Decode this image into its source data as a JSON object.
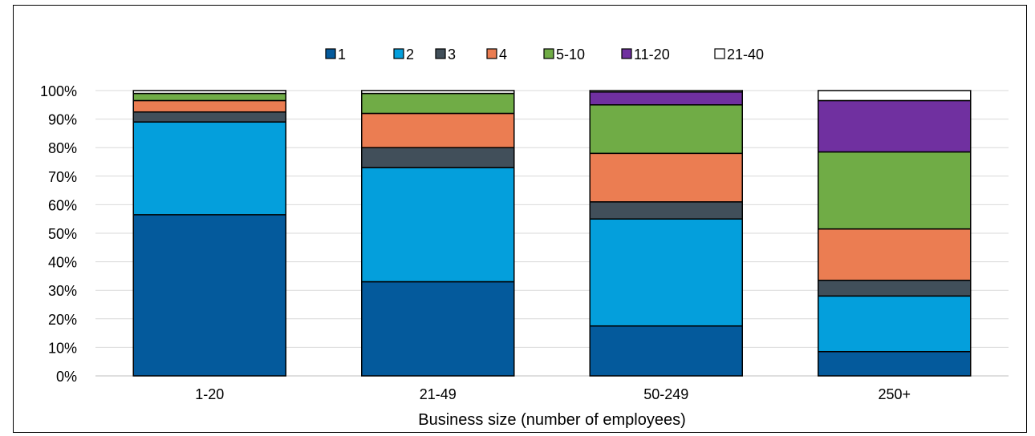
{
  "chart_data": {
    "type": "bar",
    "stacked": true,
    "categories": [
      "1-20",
      "21-49",
      "50-249",
      "250+"
    ],
    "series": [
      {
        "name": "1",
        "color": "#045a9c",
        "values": [
          56.5,
          33,
          17.5,
          8.5
        ]
      },
      {
        "name": "2",
        "color": "#049fdc",
        "values": [
          32.5,
          40,
          37.5,
          19.5
        ]
      },
      {
        "name": "3",
        "color": "#414f5a",
        "values": [
          3.5,
          7,
          6,
          5.5
        ]
      },
      {
        "name": "4",
        "color": "#eb7d52",
        "values": [
          4,
          12,
          17,
          18
        ]
      },
      {
        "name": "5-10",
        "color": "#70ac46",
        "values": [
          2.5,
          7,
          17,
          27
        ]
      },
      {
        "name": "11-20",
        "color": "#7030a0",
        "values": [
          0,
          0,
          4.5,
          18
        ]
      },
      {
        "name": "21-40",
        "color": "#ffffff",
        "values": [
          1,
          1,
          0.5,
          3.5
        ]
      }
    ],
    "xlabel": "Business size (number of employees)",
    "ylabel": "",
    "ylim": [
      0,
      100
    ],
    "yticks": [
      "0%",
      "10%",
      "20%",
      "30%",
      "40%",
      "50%",
      "60%",
      "70%",
      "80%",
      "90%",
      "100%"
    ],
    "grid": true,
    "legend_position": "top"
  }
}
